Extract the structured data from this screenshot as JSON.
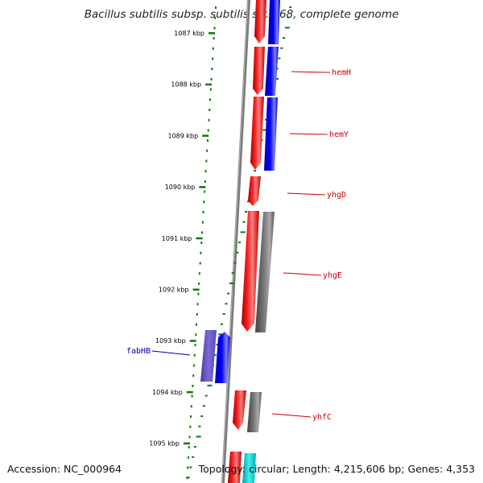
{
  "title": "Bacillus subtilis subsp. subtilis str. 168, complete genome",
  "accession": "Accession: NC_000964",
  "summary": "Topology: circular; Length: 4,215,606 bp; Genes: 4,353",
  "ruler_labels": [
    "1087 kbp",
    "1088 kbp",
    "1089 kbp",
    "1090 kbp",
    "1091 kbp",
    "1092 kbp",
    "1093 kbp",
    "1094 kbp",
    "1095 kbp"
  ],
  "gene_labels": [
    {
      "text": "hemH",
      "strand": "forward",
      "color": "#cc0000"
    },
    {
      "text": "hemY",
      "strand": "forward",
      "color": "#cc0000"
    },
    {
      "text": "yhgD",
      "strand": "forward",
      "color": "#cc0000"
    },
    {
      "text": "yhgE",
      "strand": "forward",
      "color": "#cc0000"
    },
    {
      "text": "fabHB",
      "strand": "reverse",
      "color": "#0000aa"
    },
    {
      "text": "yhfC",
      "strand": "forward",
      "color": "#cc0000"
    }
  ],
  "colors": {
    "cds_forward": "#ff0000",
    "cds_blue": "#0000ff",
    "cds_gray": "#666666",
    "cds_purple": "#6a5acd",
    "cds_cyan": "#00cccc",
    "ruler_tick": "#0a7a0a",
    "backbone": "#888888"
  }
}
